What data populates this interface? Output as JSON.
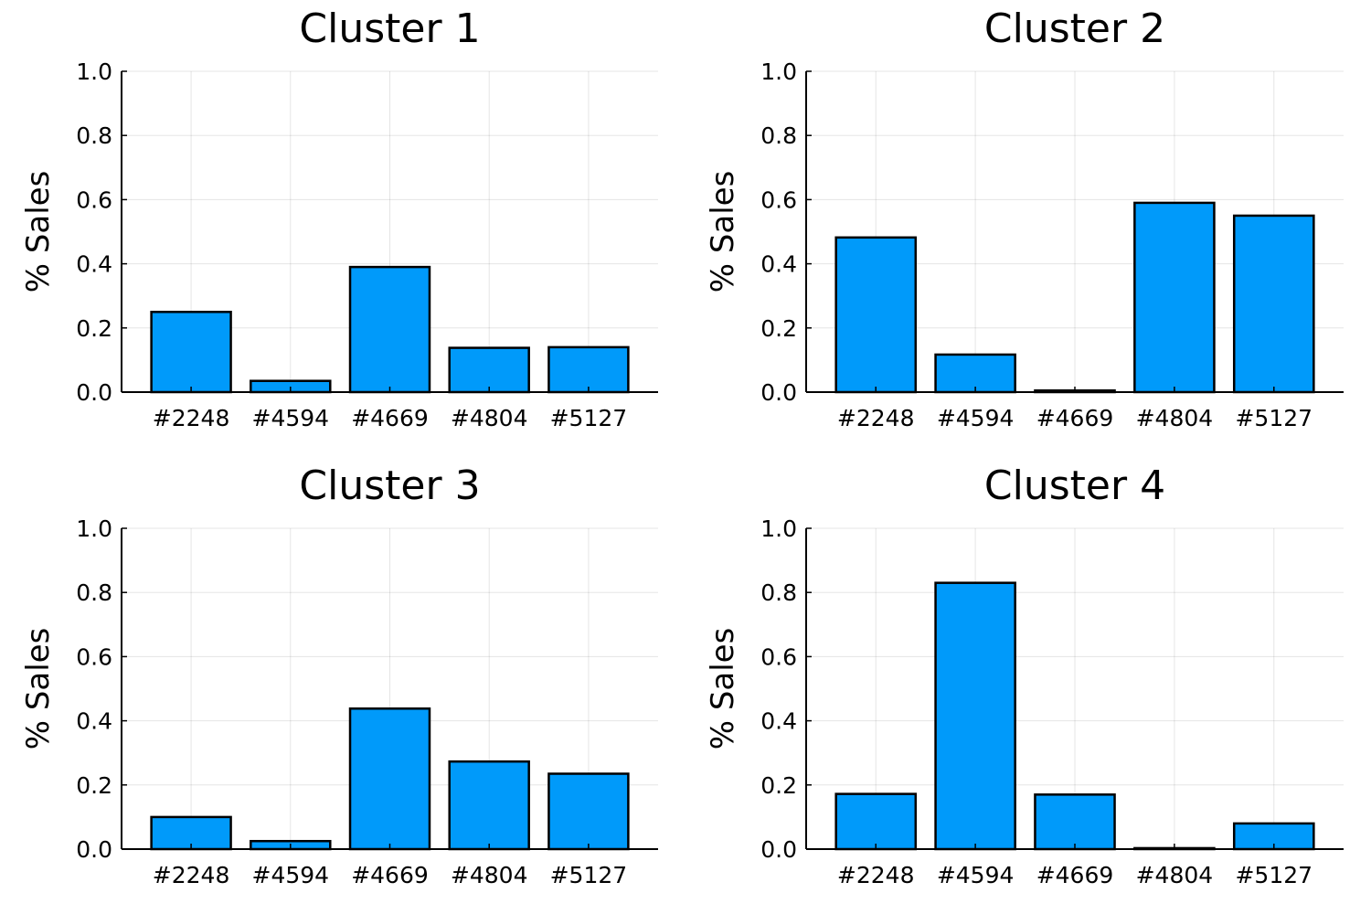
{
  "chart_data": [
    {
      "type": "bar",
      "title": "Cluster 1",
      "xlabel": "",
      "ylabel": "% Sales",
      "categories": [
        "#2248",
        "#4594",
        "#4669",
        "#4804",
        "#5127"
      ],
      "values": [
        0.25,
        0.035,
        0.39,
        0.138,
        0.14
      ],
      "ylim": [
        0,
        1
      ],
      "yticks": [
        "0.0",
        "0.2",
        "0.4",
        "0.6",
        "0.8",
        "1.0"
      ],
      "grid": true,
      "legend": false,
      "bar_color": "#009AFA"
    },
    {
      "type": "bar",
      "title": "Cluster 2",
      "xlabel": "",
      "ylabel": "% Sales",
      "categories": [
        "#2248",
        "#4594",
        "#4669",
        "#4804",
        "#5127"
      ],
      "values": [
        0.482,
        0.117,
        0.005,
        0.59,
        0.55
      ],
      "ylim": [
        0,
        1
      ],
      "yticks": [
        "0.0",
        "0.2",
        "0.4",
        "0.6",
        "0.8",
        "1.0"
      ],
      "grid": true,
      "legend": false,
      "bar_color": "#009AFA"
    },
    {
      "type": "bar",
      "title": "Cluster 3",
      "xlabel": "",
      "ylabel": "% Sales",
      "categories": [
        "#2248",
        "#4594",
        "#4669",
        "#4804",
        "#5127"
      ],
      "values": [
        0.1,
        0.025,
        0.438,
        0.273,
        0.235
      ],
      "ylim": [
        0,
        1
      ],
      "yticks": [
        "0.0",
        "0.2",
        "0.4",
        "0.6",
        "0.8",
        "1.0"
      ],
      "grid": true,
      "legend": false,
      "bar_color": "#009AFA"
    },
    {
      "type": "bar",
      "title": "Cluster 4",
      "xlabel": "",
      "ylabel": "% Sales",
      "categories": [
        "#2248",
        "#4594",
        "#4669",
        "#4804",
        "#5127"
      ],
      "values": [
        0.172,
        0.83,
        0.17,
        0.003,
        0.08
      ],
      "ylim": [
        0,
        1
      ],
      "yticks": [
        "0.0",
        "0.2",
        "0.4",
        "0.6",
        "0.8",
        "1.0"
      ],
      "grid": true,
      "legend": false,
      "bar_color": "#009AFA"
    }
  ]
}
